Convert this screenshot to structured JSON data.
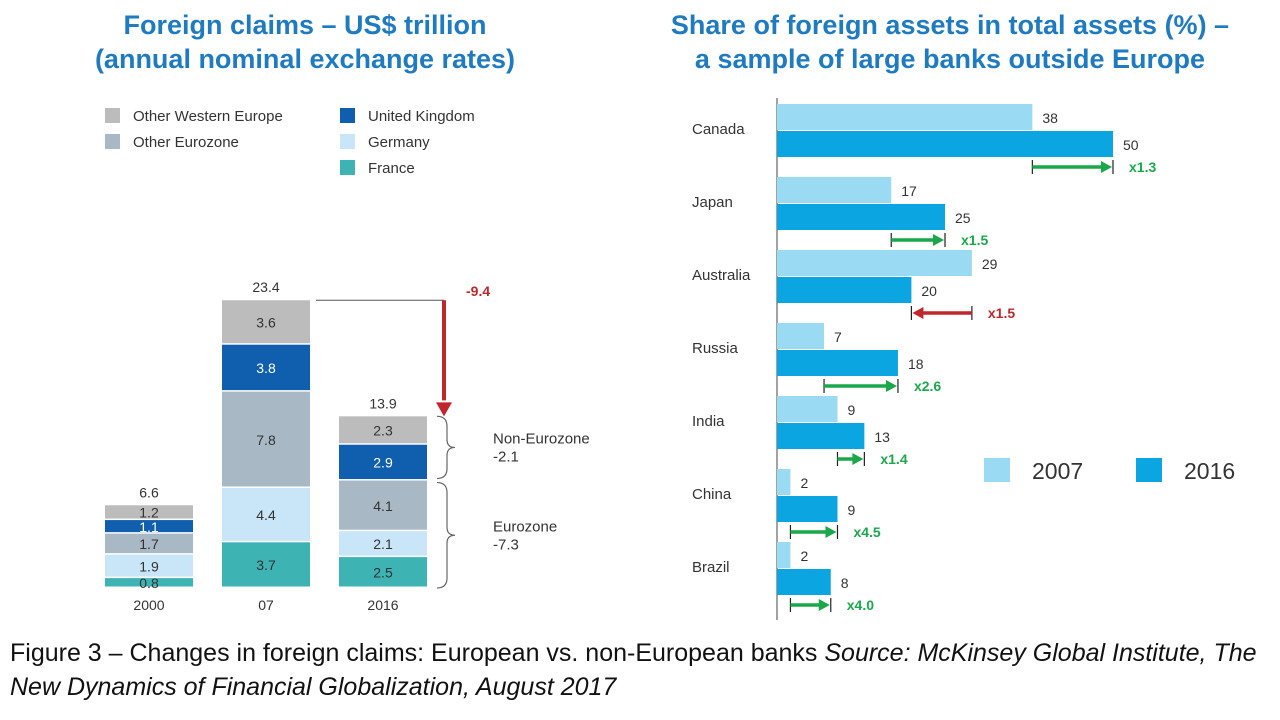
{
  "left_title_1": "Foreign claims – US$ trillion",
  "left_title_2": "(annual nominal exchange rates)",
  "right_title_1": "Share of foreign assets in total assets (%) –",
  "right_title_2": "a sample of large banks outside Europe",
  "caption_main": "Figure 3 – Changes in foreign claims: European vs. non-European banks",
  "caption_source": "Source: McKinsey Global Institute, The New Dynamics of Financial Globalization, August 2017",
  "chart_data": [
    {
      "type": "bar",
      "stacked": true,
      "categories": [
        "2000",
        "07",
        "2016"
      ],
      "totals": [
        "6.6",
        "23.4",
        "13.9"
      ],
      "series": [
        {
          "name": "France",
          "color": "#3db3b3",
          "values": [
            0.8,
            3.7,
            2.5
          ],
          "labels": [
            "0.8",
            "3.7",
            "2.5"
          ]
        },
        {
          "name": "Germany",
          "color": "#c8e6f8",
          "values": [
            1.9,
            4.4,
            2.1
          ],
          "labels": [
            "1.9",
            "4.4",
            "2.1"
          ]
        },
        {
          "name": "Other Eurozone",
          "color": "#a8b8c4",
          "values": [
            1.7,
            7.8,
            4.1
          ],
          "labels": [
            "1.7",
            "7.8",
            "4.1"
          ]
        },
        {
          "name": "United Kingdom",
          "color": "#0f5fae",
          "values": [
            1.1,
            3.8,
            2.9
          ],
          "labels": [
            "1.1",
            "3.8",
            "2.9"
          ]
        },
        {
          "name": "Other Western Europe",
          "color": "#bcbcbc",
          "values": [
            1.2,
            3.6,
            2.3
          ],
          "labels": [
            "1.2",
            "3.6",
            "2.3"
          ]
        }
      ],
      "legend": [
        {
          "name": "Other Western Europe",
          "color": "#bcbcbc"
        },
        {
          "name": "Other Eurozone",
          "color": "#a8b8c4"
        },
        {
          "name": "United Kingdom",
          "color": "#0f5fae"
        },
        {
          "name": "Germany",
          "color": "#c8e6f8"
        },
        {
          "name": "France",
          "color": "#3db3b3"
        }
      ],
      "annotations": {
        "change": "-9.4",
        "change_color": "#c0272d",
        "non_eurozone_label": "Non-Eurozone",
        "non_eurozone_value": "-2.1",
        "eurozone_label": "Eurozone",
        "eurozone_value": "-7.3"
      }
    },
    {
      "type": "bar",
      "orientation": "horizontal",
      "categories": [
        "Canada",
        "Japan",
        "Australia",
        "Russia",
        "India",
        "China",
        "Brazil"
      ],
      "series": [
        {
          "name": "2007",
          "color": "#9bdaf3",
          "values": [
            38,
            17,
            29,
            7,
            9,
            2,
            2
          ]
        },
        {
          "name": "2016",
          "color": "#0ba5e2",
          "values": [
            50,
            25,
            20,
            18,
            13,
            9,
            8
          ]
        }
      ],
      "multipliers": [
        "x1.3",
        "x1.5",
        "x1.5",
        "x2.6",
        "x1.4",
        "x4.5",
        "x4.0"
      ],
      "directions": [
        "up",
        "up",
        "down",
        "up",
        "up",
        "up",
        "up"
      ],
      "up_color": "#1aa84a",
      "down_color": "#c0272d",
      "legend_position": "right"
    }
  ]
}
